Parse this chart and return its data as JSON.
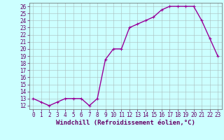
{
  "x": [
    0,
    1,
    2,
    3,
    4,
    5,
    6,
    7,
    8,
    9,
    10,
    11,
    12,
    13,
    14,
    15,
    16,
    17,
    18,
    19,
    20,
    21,
    22,
    23
  ],
  "y": [
    13,
    12.5,
    12,
    12.5,
    13,
    13,
    13,
    12,
    13,
    18.5,
    20,
    20,
    23,
    23.5,
    24,
    24.5,
    25.5,
    26,
    26,
    26,
    26,
    24,
    21.5,
    19
  ],
  "line_color": "#990099",
  "marker": "+",
  "marker_size": 3,
  "xlabel": "Windchill (Refroidissement éolien,°C)",
  "xlim": [
    -0.5,
    23.5
  ],
  "ylim": [
    11.5,
    26.5
  ],
  "yticks": [
    12,
    13,
    14,
    15,
    16,
    17,
    18,
    19,
    20,
    21,
    22,
    23,
    24,
    25,
    26
  ],
  "xticks": [
    0,
    1,
    2,
    3,
    4,
    5,
    6,
    7,
    8,
    9,
    10,
    11,
    12,
    13,
    14,
    15,
    16,
    17,
    18,
    19,
    20,
    21,
    22,
    23
  ],
  "background_color": "#ccffff",
  "grid_color": "#aabbbb",
  "tick_label_fontsize": 5.5,
  "xlabel_fontsize": 6.5,
  "line_width": 1.0,
  "marker_edge_width": 0.8
}
